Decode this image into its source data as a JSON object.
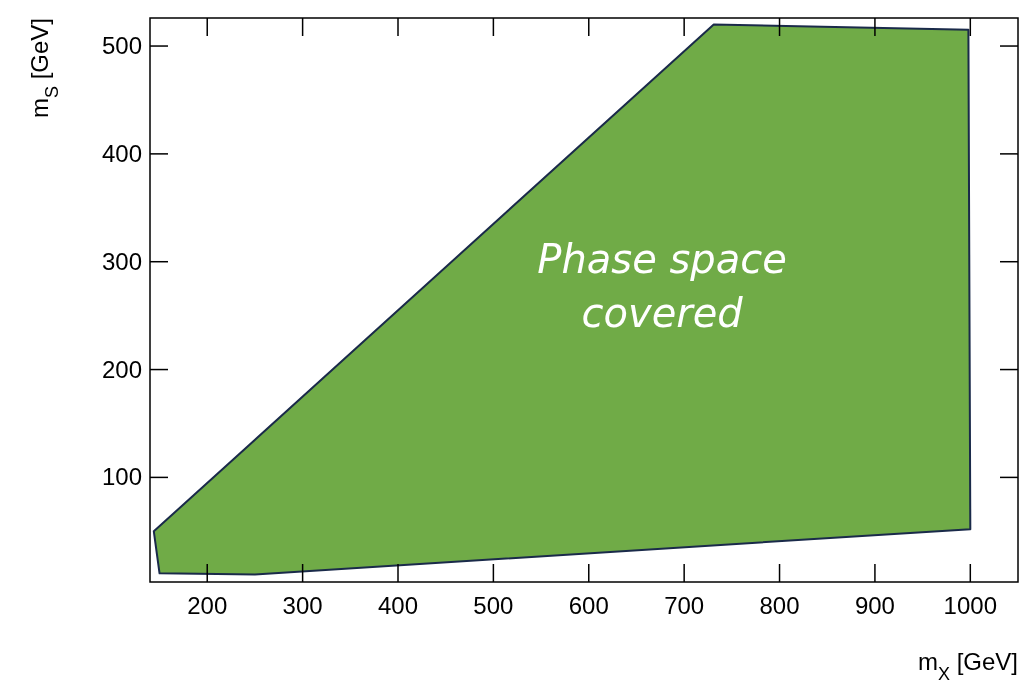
{
  "chart_data": {
    "type": "area",
    "xlabel": "m$_{X}$ [GeV]",
    "ylabel": "m$_{S}$ [GeV]",
    "xlim": [
      140,
      1050
    ],
    "xticks": [
      200,
      300,
      400,
      500,
      600,
      700,
      800,
      900,
      1000
    ],
    "ylim": [
      3,
      526
    ],
    "yticks": [
      100,
      200,
      300,
      400,
      500
    ],
    "grid": false,
    "series": [
      {
        "color": "#70ab47",
        "x": [
          144,
          150,
          250,
          1000,
          998,
          731,
          144
        ],
        "values": [
          50,
          11,
          10,
          52,
          515,
          520,
          50
        ]
      }
    ],
    "annotations": [
      "Phase space\ncovered"
    ]
  }
}
